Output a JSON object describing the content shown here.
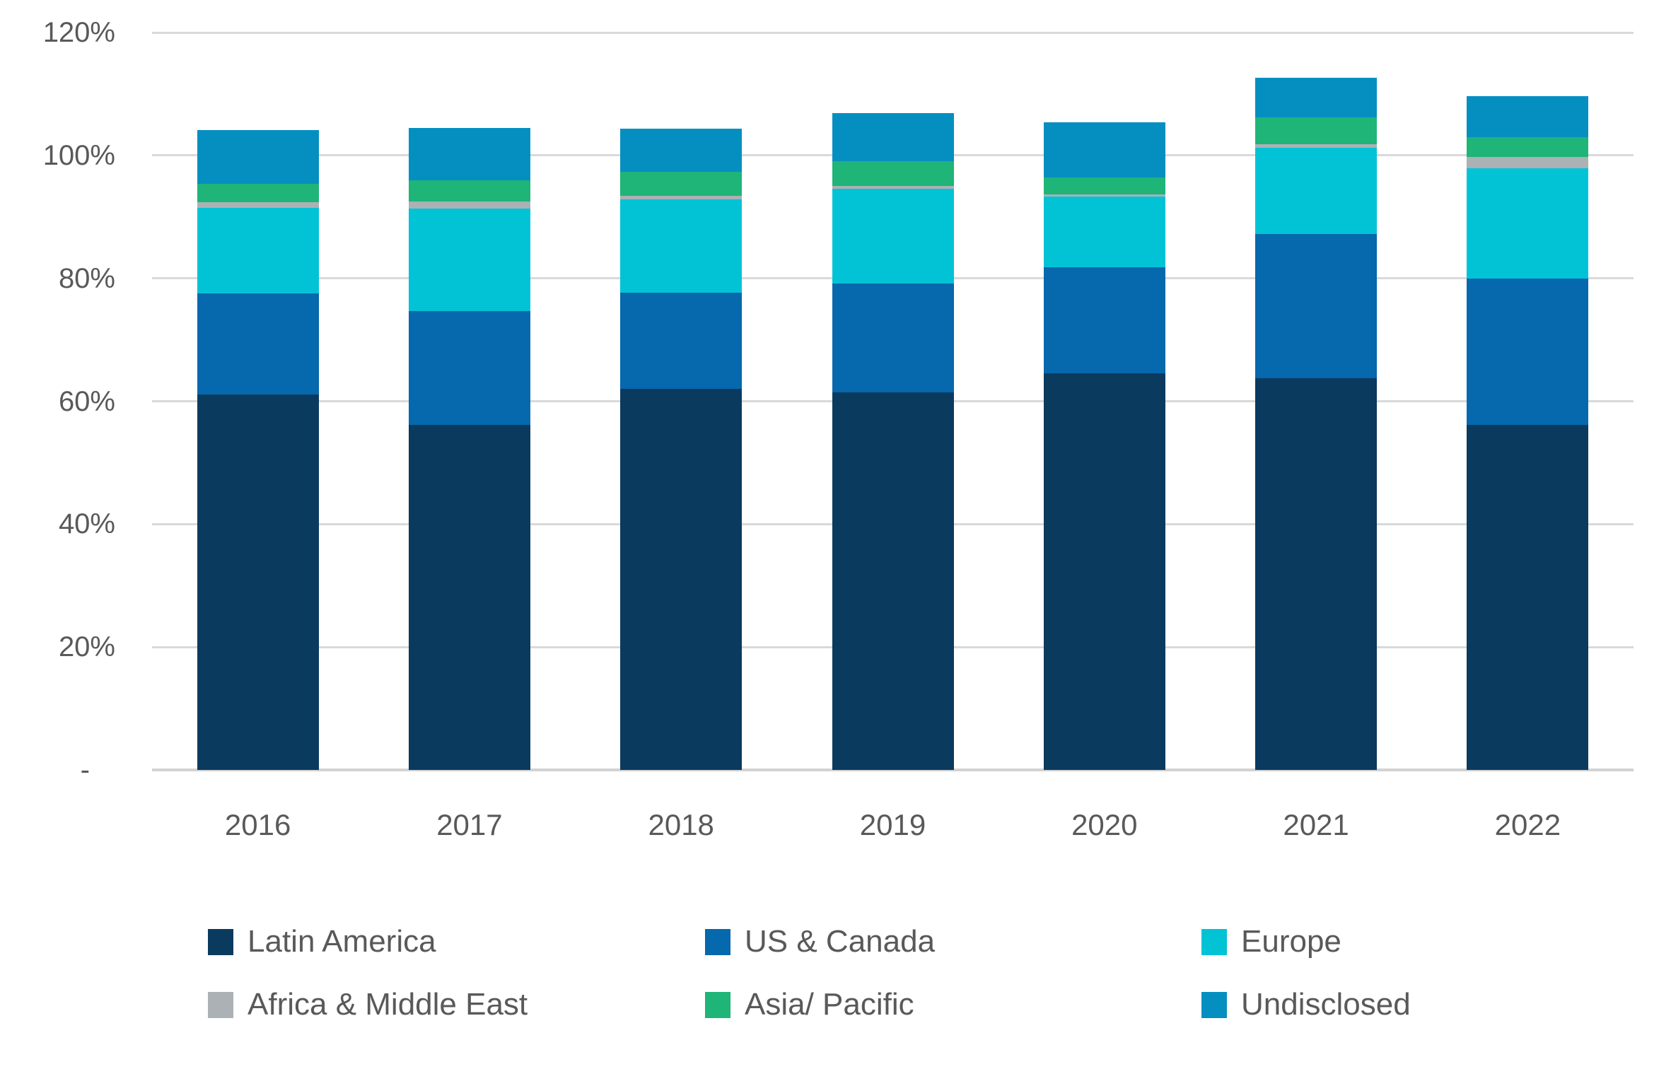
{
  "chart_data": {
    "type": "bar",
    "stacked": true,
    "title": "",
    "xlabel": "",
    "ylabel": "",
    "categories": [
      "2016",
      "2017",
      "2018",
      "2019",
      "2020",
      "2021",
      "2022"
    ],
    "series": [
      {
        "name": "Latin America",
        "color": "#0b3a5f",
        "values": [
          61.1,
          56.1,
          62.0,
          61.4,
          64.6,
          63.7,
          56.1
        ]
      },
      {
        "name": "US & Canada",
        "color": "#0668ad",
        "values": [
          16.5,
          18.6,
          15.7,
          17.8,
          17.2,
          23.5,
          23.9
        ]
      },
      {
        "name": "Europe",
        "color": "#02c3d6",
        "values": [
          13.9,
          16.6,
          15.2,
          15.4,
          11.5,
          14.1,
          17.9
        ]
      },
      {
        "name": "Africa & Middle East",
        "color": "#acb1b5",
        "values": [
          0.9,
          1.2,
          0.5,
          0.4,
          0.3,
          0.5,
          1.8
        ]
      },
      {
        "name": "Asia/ Pacific",
        "color": "#1fb478",
        "values": [
          3.0,
          3.4,
          3.9,
          4.1,
          2.8,
          4.4,
          3.3
        ]
      },
      {
        "name": "Undisclosed",
        "color": "#058fc0",
        "values": [
          8.7,
          8.6,
          7.0,
          7.8,
          9.0,
          6.4,
          6.7
        ]
      }
    ],
    "stack_totals": [
      104.1,
      104.5,
      104.3,
      106.9,
      105.4,
      112.6,
      109.7
    ],
    "y_axis": {
      "min": 0,
      "max": 120,
      "step": 20,
      "tick_labels": [
        "120%",
        "100%",
        "80%",
        "60%",
        "40%",
        "20%",
        "-"
      ]
    },
    "grid": true,
    "legend_position": "bottom",
    "legend_rows": 2,
    "legend_columns": 3,
    "colors": {
      "gridline": "#d9d9d9",
      "axis_line": "#d2d2d2",
      "axis_text": "#595959",
      "background": "#ffffff"
    }
  }
}
